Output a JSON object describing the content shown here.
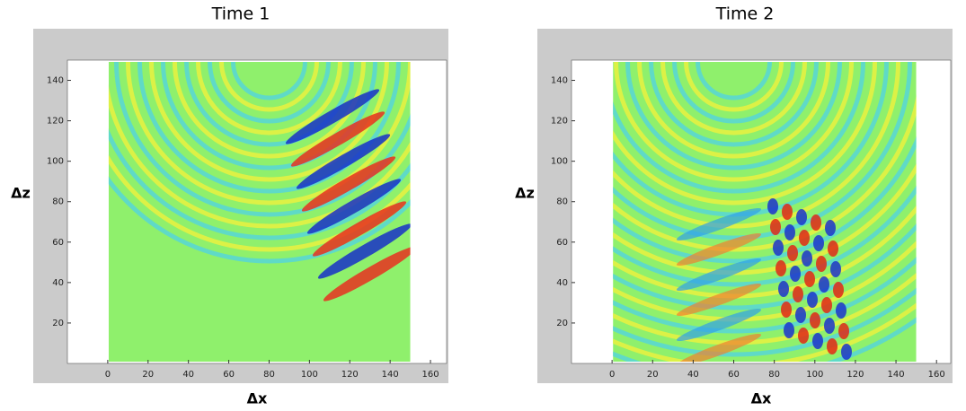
{
  "chart_data": [
    {
      "type": "wavefield",
      "title": "Time 1",
      "xlabel": "Δx",
      "ylabel": "Δz",
      "xlim": [
        -20,
        168
      ],
      "ylim": [
        0,
        150
      ],
      "xticks": [
        0,
        20,
        40,
        60,
        80,
        100,
        120,
        140,
        160
      ],
      "yticks": [
        20,
        40,
        60,
        80,
        100,
        120,
        140
      ]
    },
    {
      "type": "wavefield",
      "title": "Time 2",
      "xlabel": "Δx",
      "ylabel": "Δz",
      "xlim": [
        -20,
        167
      ],
      "ylim": [
        0,
        150
      ],
      "xticks": [
        0,
        20,
        40,
        60,
        80,
        100,
        120,
        140,
        160
      ],
      "yticks": [
        20,
        40,
        60,
        80,
        100,
        120,
        140
      ]
    }
  ]
}
